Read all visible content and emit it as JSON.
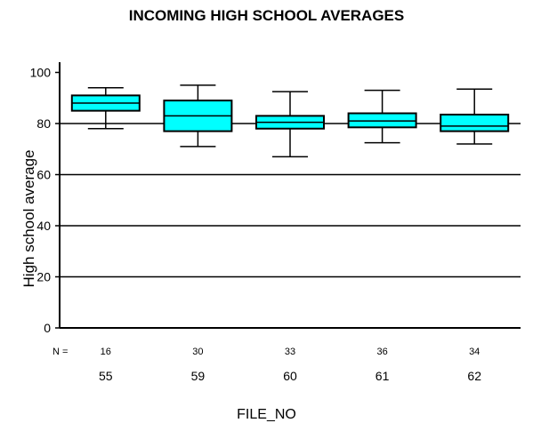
{
  "chart_data": {
    "type": "box",
    "title": "INCOMING HIGH SCHOOL AVERAGES",
    "xlabel": "FILE_NO",
    "ylabel": "High school average",
    "ylim": [
      0,
      104
    ],
    "yticks": [
      0,
      20,
      40,
      60,
      80,
      100
    ],
    "grid_lines_y": [
      20,
      40,
      60,
      80
    ],
    "box_color": "#00ffff",
    "n_label": "N =",
    "categories": [
      "55",
      "59",
      "60",
      "61",
      "62"
    ],
    "n": [
      "16",
      "30",
      "33",
      "36",
      "34"
    ],
    "boxes": [
      {
        "category": "55",
        "min": 78,
        "q1": 85,
        "median": 88,
        "q3": 91,
        "max": 94
      },
      {
        "category": "59",
        "min": 71,
        "q1": 77,
        "median": 83,
        "q3": 89,
        "max": 95
      },
      {
        "category": "60",
        "min": 67,
        "q1": 78,
        "median": 80.5,
        "q3": 83,
        "max": 92.5
      },
      {
        "category": "61",
        "min": 72.5,
        "q1": 78.5,
        "median": 81,
        "q3": 84,
        "max": 93
      },
      {
        "category": "62",
        "min": 72,
        "q1": 77,
        "median": 79,
        "q3": 83.5,
        "max": 93.5
      }
    ]
  }
}
